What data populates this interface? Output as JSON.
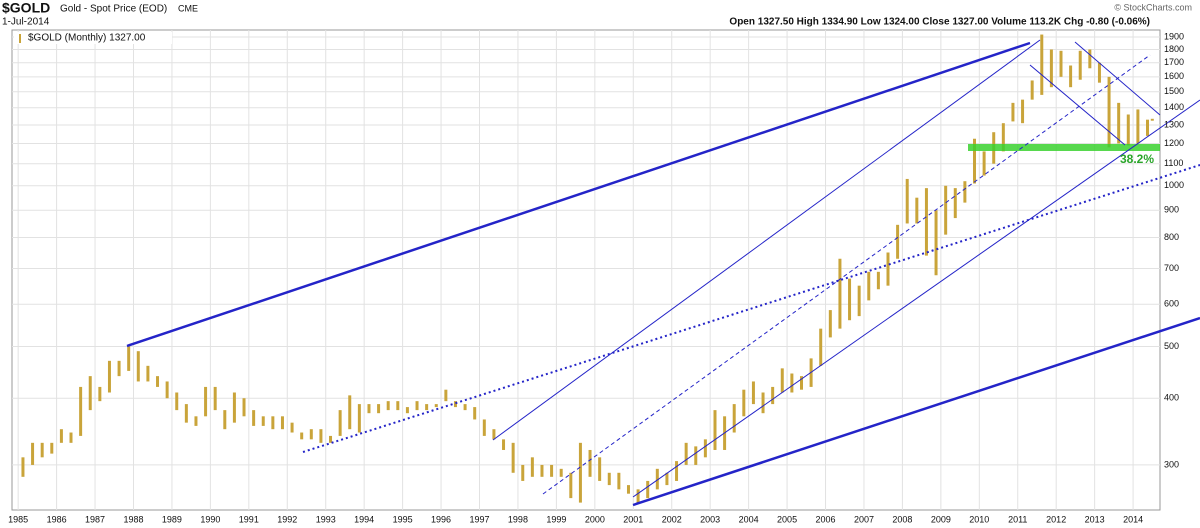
{
  "chart_data": {
    "type": "hilo",
    "title": "$GOLD",
    "subtitle": "Gold - Spot Price (EOD)",
    "exchange": "CME",
    "date": "1-Jul-2014",
    "quote": "Open 1327.50  High 1334.90  Low 1324.00  Close 1327.00  Volume 113.2K  Chg -0.80 (-0.06%)",
    "legend": "$GOLD (Monthly) 1327.00",
    "credit": "© StockCharts.com",
    "annotation": "38.2%",
    "color": "#c9a43a",
    "log_scale": true,
    "grid": true,
    "xlim": [
      1984.84,
      2014.7
    ],
    "ylim": [
      247,
      1958
    ],
    "xticks": [
      1985,
      1986,
      1987,
      1988,
      1989,
      1990,
      1991,
      1992,
      1993,
      1994,
      1995,
      1996,
      1997,
      1998,
      1999,
      2000,
      2001,
      2002,
      2003,
      2004,
      2005,
      2006,
      2007,
      2008,
      2009,
      2010,
      2011,
      2012,
      2013,
      2014
    ],
    "yticks": [
      300,
      400,
      500,
      600,
      700,
      800,
      900,
      1000,
      1100,
      1200,
      1300,
      1400,
      1500,
      1600,
      1700,
      1800,
      1900
    ],
    "x": [
      1985.125,
      1985.375,
      1985.625,
      1985.875,
      1986.125,
      1986.375,
      1986.625,
      1986.875,
      1987.125,
      1987.375,
      1987.625,
      1987.875,
      1988.125,
      1988.375,
      1988.625,
      1988.875,
      1989.125,
      1989.375,
      1989.625,
      1989.875,
      1990.125,
      1990.375,
      1990.625,
      1990.875,
      1991.125,
      1991.375,
      1991.625,
      1991.875,
      1992.125,
      1992.375,
      1992.625,
      1992.875,
      1993.125,
      1993.375,
      1993.625,
      1993.875,
      1994.125,
      1994.375,
      1994.625,
      1994.875,
      1995.125,
      1995.375,
      1995.625,
      1995.875,
      1996.125,
      1996.375,
      1996.625,
      1996.875,
      1997.125,
      1997.375,
      1997.625,
      1997.875,
      1998.125,
      1998.375,
      1998.625,
      1998.875,
      1999.125,
      1999.375,
      1999.625,
      1999.875,
      2000.125,
      2000.375,
      2000.625,
      2000.875,
      2001.125,
      2001.375,
      2001.625,
      2001.875,
      2002.125,
      2002.375,
      2002.625,
      2002.875,
      2003.125,
      2003.375,
      2003.625,
      2003.875,
      2004.125,
      2004.375,
      2004.625,
      2004.875,
      2005.125,
      2005.375,
      2005.625,
      2005.875,
      2006.125,
      2006.375,
      2006.625,
      2006.875,
      2007.125,
      2007.375,
      2007.625,
      2007.875,
      2008.125,
      2008.375,
      2008.625,
      2008.875,
      2009.125,
      2009.375,
      2009.625,
      2009.875,
      2010.125,
      2010.375,
      2010.625,
      2010.875,
      2011.125,
      2011.375,
      2011.625,
      2011.875,
      2012.125,
      2012.375,
      2012.625,
      2012.875,
      2013.125,
      2013.375,
      2013.625,
      2013.875,
      2014.125,
      2014.375,
      2014.5
    ],
    "high": [
      310,
      330,
      330,
      330,
      350,
      345,
      420,
      440,
      420,
      470,
      470,
      500,
      490,
      460,
      440,
      430,
      410,
      390,
      370,
      420,
      420,
      380,
      410,
      400,
      380,
      370,
      370,
      370,
      360,
      345,
      350,
      350,
      340,
      380,
      405,
      390,
      390,
      390,
      395,
      395,
      385,
      395,
      390,
      390,
      415,
      395,
      390,
      385,
      365,
      350,
      335,
      330,
      300,
      310,
      300,
      300,
      295,
      290,
      330,
      320,
      310,
      290,
      290,
      275,
      270,
      280,
      295,
      290,
      305,
      330,
      325,
      335,
      380,
      370,
      390,
      415,
      430,
      410,
      420,
      455,
      445,
      440,
      475,
      540,
      585,
      730,
      670,
      650,
      690,
      690,
      750,
      845,
      1030,
      950,
      990,
      900,
      1000,
      990,
      1020,
      1225,
      1160,
      1260,
      1310,
      1430,
      1450,
      1575,
      1920,
      1800,
      1790,
      1680,
      1790,
      1800,
      1700,
      1600,
      1430,
      1360,
      1390,
      1330,
      1335
    ],
    "low": [
      285,
      300,
      310,
      315,
      330,
      330,
      340,
      380,
      395,
      410,
      440,
      450,
      430,
      430,
      420,
      400,
      380,
      360,
      355,
      370,
      380,
      350,
      360,
      370,
      355,
      355,
      350,
      350,
      345,
      335,
      335,
      330,
      330,
      340,
      350,
      345,
      375,
      375,
      380,
      380,
      375,
      380,
      380,
      385,
      395,
      385,
      380,
      365,
      340,
      335,
      320,
      290,
      280,
      285,
      285,
      285,
      285,
      260,
      255,
      285,
      280,
      275,
      270,
      265,
      255,
      260,
      270,
      275,
      280,
      300,
      300,
      310,
      320,
      320,
      345,
      370,
      390,
      375,
      390,
      410,
      410,
      415,
      420,
      460,
      520,
      540,
      560,
      570,
      610,
      640,
      650,
      730,
      850,
      850,
      740,
      680,
      810,
      870,
      930,
      1010,
      1045,
      1100,
      1160,
      1320,
      1310,
      1450,
      1480,
      1530,
      1600,
      1530,
      1580,
      1660,
      1560,
      1180,
      1200,
      1190,
      1200,
      1240,
      1324
    ]
  }
}
